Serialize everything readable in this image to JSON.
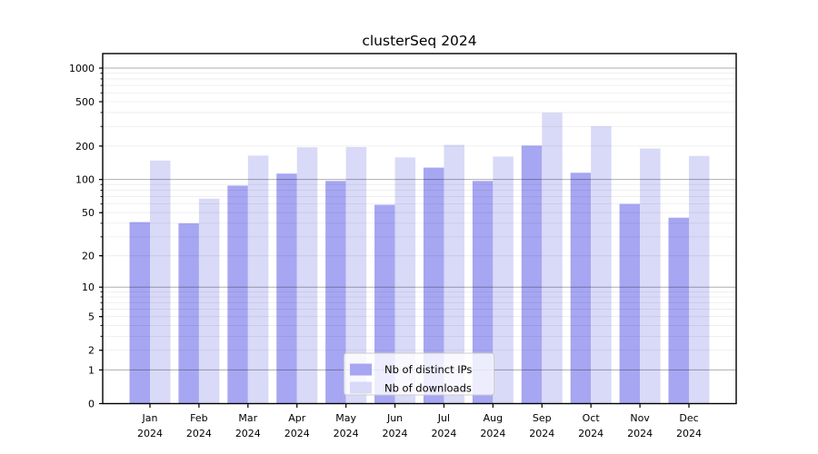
{
  "figure": {
    "background": "#ffffff"
  },
  "chart_data": {
    "type": "bar",
    "title": "clusterSeq 2024",
    "categories": [
      "Jan",
      "Feb",
      "Mar",
      "Apr",
      "May",
      "Jun",
      "Jul",
      "Aug",
      "Sep",
      "Oct",
      "Nov",
      "Dec"
    ],
    "category_year": "2024",
    "series": [
      {
        "name": "Nb of distinct IPs",
        "color": "#a6a6f2",
        "values": [
          41,
          40,
          88,
          113,
          97,
          59,
          128,
          97,
          202,
          115,
          60,
          45
        ]
      },
      {
        "name": "Nb of downloads",
        "color": "#d9d9f8",
        "values": [
          148,
          67,
          164,
          195,
          196,
          158,
          205,
          161,
          398,
          301,
          190,
          163
        ]
      }
    ],
    "y_axis": {
      "scale": "log1p",
      "tick_labels": [
        0,
        1,
        2,
        5,
        10,
        20,
        50,
        100,
        200,
        500,
        1000
      ],
      "major_gridlines": [
        1,
        10,
        100,
        1000
      ],
      "minor_gridlines": [
        2,
        3,
        4,
        5,
        6,
        7,
        8,
        9,
        20,
        30,
        40,
        50,
        60,
        70,
        80,
        90,
        200,
        300,
        400,
        500,
        600,
        700,
        800,
        900
      ],
      "max": 1348
    },
    "legend": {
      "position": "lower-center",
      "entries": [
        "Nb of distinct IPs",
        "Nb of downloads"
      ]
    },
    "grid": true,
    "colors": {
      "ips_bar": "#a6a6f2",
      "downloads_bar": "#d9d9f8",
      "major_grid": "#aeaeae",
      "minor_grid": "#e9e9e9",
      "axis_frame": "#000000",
      "legend_border": "#cccccc"
    }
  }
}
